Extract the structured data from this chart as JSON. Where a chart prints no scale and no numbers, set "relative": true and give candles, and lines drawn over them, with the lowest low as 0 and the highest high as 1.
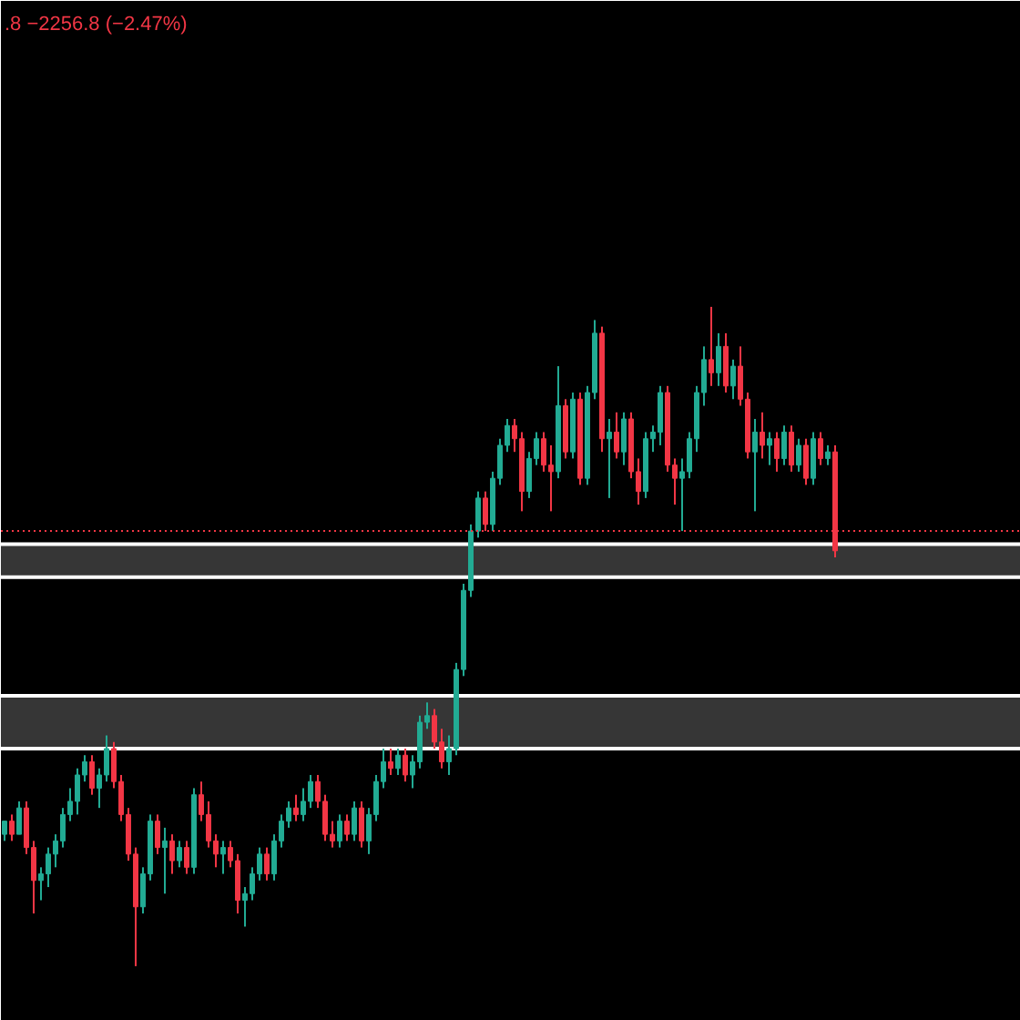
{
  "chart_data": {
    "type": "candlestick",
    "relative": true,
    "tick_labels": false,
    "annotations": [
      ".8 −2256.8 (−2.47%)"
    ],
    "categories": [
      null,
      null,
      null,
      null,
      null,
      null,
      null,
      null,
      null,
      null,
      null,
      null,
      null,
      null,
      null,
      null,
      null,
      null,
      null,
      null,
      null,
      null,
      null,
      null,
      null,
      null,
      null,
      null,
      null,
      null,
      null,
      null,
      null,
      null,
      null,
      null,
      null,
      null,
      null,
      null,
      null,
      null,
      null,
      null,
      null,
      null,
      null,
      null,
      null,
      null,
      null,
      null,
      null,
      null,
      null,
      null,
      null,
      null,
      null,
      null,
      null,
      null,
      null,
      null,
      null,
      null,
      null,
      null,
      null,
      null,
      null,
      null,
      null,
      null,
      null,
      null,
      null,
      null,
      null,
      null,
      null,
      null,
      null,
      null,
      null,
      null,
      null,
      null,
      null,
      null,
      null,
      null,
      null,
      null,
      null,
      null,
      null,
      null,
      null,
      null,
      null,
      null,
      null,
      null,
      null,
      null,
      null,
      null,
      null,
      null,
      null,
      null,
      null,
      null,
      null
    ],
    "ohlc": [
      [
        0.2,
        0.22,
        0.19,
        0.22
      ],
      [
        0.22,
        0.23,
        0.19,
        0.2
      ],
      [
        0.2,
        0.25,
        0.2,
        0.24
      ],
      [
        0.24,
        0.25,
        0.17,
        0.18
      ],
      [
        0.18,
        0.19,
        0.08,
        0.13
      ],
      [
        0.13,
        0.15,
        0.1,
        0.14
      ],
      [
        0.14,
        0.18,
        0.12,
        0.17
      ],
      [
        0.17,
        0.2,
        0.15,
        0.19
      ],
      [
        0.19,
        0.24,
        0.18,
        0.23
      ],
      [
        0.23,
        0.27,
        0.22,
        0.25
      ],
      [
        0.25,
        0.3,
        0.23,
        0.29
      ],
      [
        0.29,
        0.32,
        0.28,
        0.31
      ],
      [
        0.31,
        0.32,
        0.26,
        0.27
      ],
      [
        0.27,
        0.3,
        0.24,
        0.29
      ],
      [
        0.29,
        0.35,
        0.28,
        0.33
      ],
      [
        0.33,
        0.34,
        0.27,
        0.28
      ],
      [
        0.28,
        0.29,
        0.22,
        0.23
      ],
      [
        0.23,
        0.24,
        0.16,
        0.17
      ],
      [
        0.17,
        0.18,
        0.0,
        0.09
      ],
      [
        0.09,
        0.15,
        0.08,
        0.14
      ],
      [
        0.14,
        0.23,
        0.13,
        0.22
      ],
      [
        0.22,
        0.23,
        0.17,
        0.18
      ],
      [
        0.18,
        0.21,
        0.11,
        0.19
      ],
      [
        0.19,
        0.2,
        0.14,
        0.16
      ],
      [
        0.16,
        0.19,
        0.15,
        0.18
      ],
      [
        0.18,
        0.19,
        0.14,
        0.15
      ],
      [
        0.15,
        0.27,
        0.14,
        0.26
      ],
      [
        0.26,
        0.28,
        0.22,
        0.23
      ],
      [
        0.23,
        0.25,
        0.18,
        0.19
      ],
      [
        0.19,
        0.2,
        0.15,
        0.17
      ],
      [
        0.17,
        0.19,
        0.14,
        0.18
      ],
      [
        0.18,
        0.19,
        0.15,
        0.16
      ],
      [
        0.16,
        0.17,
        0.08,
        0.1
      ],
      [
        0.1,
        0.12,
        0.06,
        0.11
      ],
      [
        0.11,
        0.15,
        0.1,
        0.14
      ],
      [
        0.14,
        0.18,
        0.13,
        0.17
      ],
      [
        0.17,
        0.18,
        0.13,
        0.14
      ],
      [
        0.14,
        0.2,
        0.13,
        0.19
      ],
      [
        0.19,
        0.23,
        0.18,
        0.22
      ],
      [
        0.22,
        0.25,
        0.21,
        0.24
      ],
      [
        0.24,
        0.26,
        0.22,
        0.23
      ],
      [
        0.23,
        0.27,
        0.22,
        0.25
      ],
      [
        0.25,
        0.29,
        0.24,
        0.28
      ],
      [
        0.28,
        0.29,
        0.24,
        0.25
      ],
      [
        0.25,
        0.26,
        0.19,
        0.2
      ],
      [
        0.2,
        0.22,
        0.18,
        0.19
      ],
      [
        0.19,
        0.23,
        0.18,
        0.22
      ],
      [
        0.22,
        0.23,
        0.19,
        0.2
      ],
      [
        0.2,
        0.25,
        0.19,
        0.24
      ],
      [
        0.24,
        0.25,
        0.18,
        0.19
      ],
      [
        0.19,
        0.24,
        0.17,
        0.23
      ],
      [
        0.23,
        0.29,
        0.22,
        0.28
      ],
      [
        0.28,
        0.33,
        0.27,
        0.31
      ],
      [
        0.31,
        0.33,
        0.29,
        0.3
      ],
      [
        0.3,
        0.33,
        0.29,
        0.32
      ],
      [
        0.32,
        0.33,
        0.28,
        0.29
      ],
      [
        0.29,
        0.32,
        0.27,
        0.31
      ],
      [
        0.31,
        0.38,
        0.3,
        0.37
      ],
      [
        0.37,
        0.4,
        0.36,
        0.38
      ],
      [
        0.38,
        0.39,
        0.33,
        0.34
      ],
      [
        0.34,
        0.36,
        0.3,
        0.31
      ],
      [
        0.31,
        0.35,
        0.29,
        0.33
      ],
      [
        0.33,
        0.46,
        0.32,
        0.45
      ],
      [
        0.45,
        0.58,
        0.44,
        0.57
      ],
      [
        0.57,
        0.67,
        0.56,
        0.66
      ],
      [
        0.66,
        0.72,
        0.65,
        0.71
      ],
      [
        0.71,
        0.72,
        0.66,
        0.67
      ],
      [
        0.67,
        0.75,
        0.66,
        0.74
      ],
      [
        0.74,
        0.8,
        0.73,
        0.79
      ],
      [
        0.79,
        0.83,
        0.78,
        0.82
      ],
      [
        0.82,
        0.83,
        0.78,
        0.8
      ],
      [
        0.8,
        0.81,
        0.69,
        0.72
      ],
      [
        0.72,
        0.78,
        0.71,
        0.77
      ],
      [
        0.77,
        0.81,
        0.76,
        0.8
      ],
      [
        0.8,
        0.81,
        0.75,
        0.76
      ],
      [
        0.76,
        0.79,
        0.69,
        0.75
      ],
      [
        0.75,
        0.91,
        0.74,
        0.85
      ],
      [
        0.85,
        0.86,
        0.77,
        0.78
      ],
      [
        0.78,
        0.87,
        0.77,
        0.86
      ],
      [
        0.86,
        0.87,
        0.73,
        0.74
      ],
      [
        0.74,
        0.88,
        0.73,
        0.87
      ],
      [
        0.87,
        0.98,
        0.86,
        0.96
      ],
      [
        0.96,
        0.97,
        0.78,
        0.8
      ],
      [
        0.8,
        0.83,
        0.71,
        0.81
      ],
      [
        0.81,
        0.84,
        0.77,
        0.78
      ],
      [
        0.78,
        0.84,
        0.76,
        0.83
      ],
      [
        0.83,
        0.84,
        0.74,
        0.75
      ],
      [
        0.75,
        0.77,
        0.7,
        0.72
      ],
      [
        0.72,
        0.81,
        0.71,
        0.8
      ],
      [
        0.8,
        0.82,
        0.78,
        0.81
      ],
      [
        0.81,
        0.88,
        0.79,
        0.87
      ],
      [
        0.87,
        0.88,
        0.75,
        0.76
      ],
      [
        0.76,
        0.77,
        0.7,
        0.74
      ],
      [
        0.74,
        0.77,
        0.66,
        0.75
      ],
      [
        0.75,
        0.81,
        0.74,
        0.8
      ],
      [
        0.8,
        0.88,
        0.78,
        0.87
      ],
      [
        0.87,
        0.94,
        0.85,
        0.92
      ],
      [
        0.92,
        1.0,
        0.88,
        0.9
      ],
      [
        0.9,
        0.96,
        0.88,
        0.94
      ],
      [
        0.94,
        0.96,
        0.87,
        0.88
      ],
      [
        0.88,
        0.92,
        0.86,
        0.91
      ],
      [
        0.91,
        0.94,
        0.85,
        0.86
      ],
      [
        0.86,
        0.87,
        0.77,
        0.78
      ],
      [
        0.78,
        0.83,
        0.69,
        0.81
      ],
      [
        0.81,
        0.84,
        0.77,
        0.79
      ],
      [
        0.79,
        0.81,
        0.76,
        0.8
      ],
      [
        0.8,
        0.81,
        0.75,
        0.77
      ],
      [
        0.77,
        0.82,
        0.76,
        0.81
      ],
      [
        0.81,
        0.82,
        0.75,
        0.76
      ],
      [
        0.76,
        0.8,
        0.75,
        0.79
      ],
      [
        0.79,
        0.8,
        0.73,
        0.74
      ],
      [
        0.74,
        0.81,
        0.73,
        0.8
      ],
      [
        0.8,
        0.81,
        0.76,
        0.77
      ],
      [
        0.77,
        0.79,
        0.76,
        0.78
      ],
      [
        0.78,
        0.79,
        0.62,
        0.63
      ]
    ],
    "colors": [
      "#22ab94",
      "#f23645",
      "#22ab94",
      "#f23645",
      "#f23645",
      "#22ab94",
      "#22ab94",
      "#22ab94",
      "#22ab94",
      "#22ab94",
      "#22ab94",
      "#22ab94",
      "#f23645",
      "#22ab94",
      "#22ab94",
      "#f23645",
      "#f23645",
      "#f23645",
      "#f23645",
      "#22ab94",
      "#22ab94",
      "#f23645",
      "#22ab94",
      "#f23645",
      "#22ab94",
      "#f23645",
      "#22ab94",
      "#f23645",
      "#f23645",
      "#f23645",
      "#22ab94",
      "#f23645",
      "#f23645",
      "#22ab94",
      "#22ab94",
      "#22ab94",
      "#f23645",
      "#22ab94",
      "#22ab94",
      "#22ab94",
      "#f23645",
      "#22ab94",
      "#22ab94",
      "#f23645",
      "#f23645",
      "#f23645",
      "#22ab94",
      "#f23645",
      "#22ab94",
      "#f23645",
      "#22ab94",
      "#22ab94",
      "#22ab94",
      "#f23645",
      "#22ab94",
      "#f23645",
      "#22ab94",
      "#22ab94",
      "#22ab94",
      "#f23645",
      "#f23645",
      "#22ab94",
      "#22ab94",
      "#22ab94",
      "#22ab94",
      "#22ab94",
      "#f23645",
      "#22ab94",
      "#22ab94",
      "#22ab94",
      "#f23645",
      "#f23645",
      "#22ab94",
      "#22ab94",
      "#f23645",
      "#f23645",
      "#22ab94",
      "#f23645",
      "#22ab94",
      "#f23645",
      "#22ab94",
      "#22ab94",
      "#f23645",
      "#22ab94",
      "#f23645",
      "#22ab94",
      "#f23645",
      "#f23645",
      "#22ab94",
      "#22ab94",
      "#22ab94",
      "#f23645",
      "#f23645",
      "#22ab94",
      "#22ab94",
      "#22ab94",
      "#22ab94",
      "#f23645",
      "#22ab94",
      "#f23645",
      "#22ab94",
      "#f23645",
      "#f23645",
      "#22ab94",
      "#f23645",
      "#22ab94",
      "#f23645",
      "#22ab94",
      "#f23645",
      "#22ab94",
      "#f23645",
      "#22ab94",
      "#f23645",
      "#22ab94",
      "#f23645"
    ],
    "bands": [
      {
        "axis": "y",
        "from": 0.59,
        "to": 0.64,
        "color": "#363636"
      },
      {
        "axis": "y",
        "from": 0.33,
        "to": 0.41,
        "color": "#363636"
      }
    ],
    "ref_lines": [
      {
        "axis": "y",
        "value": 0.66,
        "color": "#f23645",
        "line_style": "dotted"
      }
    ]
  }
}
